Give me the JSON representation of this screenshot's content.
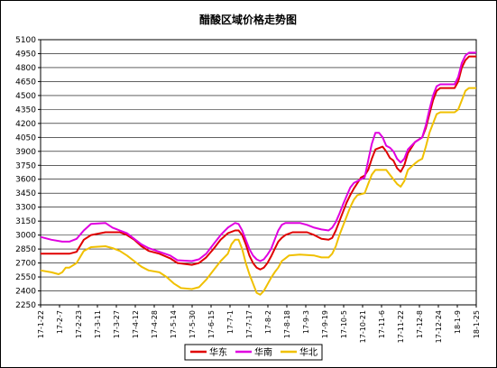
{
  "chart_data": {
    "type": "line",
    "title": "醋酸区域价格走势图",
    "xlabel": "",
    "ylabel": "",
    "ylim": [
      2250,
      5100
    ],
    "yticks": [
      2250,
      2400,
      2550,
      2700,
      2850,
      3000,
      3150,
      3300,
      3450,
      3600,
      3750,
      3900,
      4050,
      4200,
      4350,
      4500,
      4650,
      4800,
      4950,
      5100
    ],
    "x_ticks": [
      "17-1-22",
      "17-2-7",
      "17-2-23",
      "17-3-11",
      "17-3-27",
      "17-4-12",
      "17-4-28",
      "17-5-14",
      "17-5-30",
      "17-6-15",
      "17-7-1",
      "17-7-17",
      "17-8-2",
      "17-8-18",
      "17-9-3",
      "17-9-19",
      "17-10-5",
      "17-10-21",
      "17-11-6",
      "17-11-22",
      "17-12-8",
      "17-12-24",
      "18-1-9",
      "18-1-25"
    ],
    "grid": true,
    "legend_position": "bottom",
    "series": [
      {
        "name": "华东",
        "color": "#e00000",
        "points": [
          [
            0,
            2800
          ],
          [
            8,
            2800
          ],
          [
            10,
            2820
          ],
          [
            12,
            2950
          ],
          [
            14,
            3000
          ],
          [
            18,
            3030
          ],
          [
            22,
            3030
          ],
          [
            24,
            3000
          ],
          [
            26,
            2950
          ],
          [
            28,
            2880
          ],
          [
            30,
            2830
          ],
          [
            33,
            2800
          ],
          [
            36,
            2750
          ],
          [
            38,
            2700
          ],
          [
            42,
            2680
          ],
          [
            44,
            2700
          ],
          [
            46,
            2760
          ],
          [
            48,
            2850
          ],
          [
            50,
            2950
          ],
          [
            52,
            3020
          ],
          [
            54,
            3050
          ],
          [
            55,
            3050
          ],
          [
            56,
            3000
          ],
          [
            57,
            2900
          ],
          [
            58,
            2780
          ],
          [
            59,
            2700
          ],
          [
            60,
            2650
          ],
          [
            61,
            2630
          ],
          [
            62,
            2650
          ],
          [
            63,
            2700
          ],
          [
            64,
            2770
          ],
          [
            65,
            2850
          ],
          [
            66,
            2930
          ],
          [
            67,
            2970
          ],
          [
            68,
            3000
          ],
          [
            70,
            3030
          ],
          [
            74,
            3030
          ],
          [
            76,
            3000
          ],
          [
            78,
            2960
          ],
          [
            80,
            2950
          ],
          [
            81,
            2970
          ],
          [
            82,
            3050
          ],
          [
            83,
            3150
          ],
          [
            84,
            3250
          ],
          [
            85,
            3350
          ],
          [
            86,
            3430
          ],
          [
            87,
            3500
          ],
          [
            88,
            3560
          ],
          [
            89,
            3620
          ],
          [
            90,
            3640
          ],
          [
            91,
            3700
          ],
          [
            92,
            3820
          ],
          [
            93,
            3920
          ],
          [
            95,
            3950
          ],
          [
            96,
            3900
          ],
          [
            97,
            3830
          ],
          [
            98,
            3800
          ],
          [
            99,
            3720
          ],
          [
            100,
            3680
          ],
          [
            101,
            3750
          ],
          [
            102,
            3880
          ],
          [
            104,
            4000
          ],
          [
            106,
            4050
          ],
          [
            107,
            4150
          ],
          [
            108,
            4300
          ],
          [
            109,
            4450
          ],
          [
            110,
            4550
          ],
          [
            111,
            4580
          ],
          [
            115,
            4580
          ],
          [
            116,
            4650
          ],
          [
            117,
            4800
          ],
          [
            118,
            4880
          ],
          [
            119,
            4920
          ],
          [
            121,
            4920
          ]
        ]
      },
      {
        "name": "华南",
        "color": "#e000e0",
        "points": [
          [
            0,
            2980
          ],
          [
            3,
            2950
          ],
          [
            6,
            2930
          ],
          [
            8,
            2930
          ],
          [
            10,
            2960
          ],
          [
            12,
            3050
          ],
          [
            14,
            3120
          ],
          [
            18,
            3130
          ],
          [
            20,
            3080
          ],
          [
            22,
            3050
          ],
          [
            24,
            3020
          ],
          [
            26,
            2960
          ],
          [
            28,
            2900
          ],
          [
            30,
            2860
          ],
          [
            33,
            2820
          ],
          [
            36,
            2780
          ],
          [
            38,
            2730
          ],
          [
            42,
            2720
          ],
          [
            44,
            2740
          ],
          [
            46,
            2800
          ],
          [
            48,
            2900
          ],
          [
            50,
            3000
          ],
          [
            52,
            3080
          ],
          [
            54,
            3130
          ],
          [
            55,
            3120
          ],
          [
            56,
            3050
          ],
          [
            57,
            2950
          ],
          [
            58,
            2850
          ],
          [
            59,
            2780
          ],
          [
            60,
            2740
          ],
          [
            61,
            2720
          ],
          [
            62,
            2740
          ],
          [
            63,
            2790
          ],
          [
            64,
            2850
          ],
          [
            65,
            2950
          ],
          [
            66,
            3050
          ],
          [
            67,
            3110
          ],
          [
            68,
            3130
          ],
          [
            72,
            3130
          ],
          [
            74,
            3110
          ],
          [
            76,
            3080
          ],
          [
            78,
            3060
          ],
          [
            80,
            3050
          ],
          [
            81,
            3080
          ],
          [
            82,
            3140
          ],
          [
            83,
            3230
          ],
          [
            84,
            3330
          ],
          [
            85,
            3420
          ],
          [
            86,
            3510
          ],
          [
            87,
            3560
          ],
          [
            88,
            3580
          ],
          [
            89,
            3600
          ],
          [
            90,
            3620
          ],
          [
            91,
            3800
          ],
          [
            92,
            3980
          ],
          [
            93,
            4100
          ],
          [
            94,
            4100
          ],
          [
            95,
            4050
          ],
          [
            96,
            3960
          ],
          [
            97,
            3940
          ],
          [
            98,
            3900
          ],
          [
            99,
            3820
          ],
          [
            100,
            3780
          ],
          [
            101,
            3820
          ],
          [
            102,
            3920
          ],
          [
            104,
            4000
          ],
          [
            106,
            4050
          ],
          [
            107,
            4180
          ],
          [
            108,
            4350
          ],
          [
            109,
            4500
          ],
          [
            110,
            4600
          ],
          [
            111,
            4620
          ],
          [
            115,
            4620
          ],
          [
            116,
            4700
          ],
          [
            117,
            4850
          ],
          [
            118,
            4930
          ],
          [
            119,
            4960
          ],
          [
            121,
            4960
          ]
        ]
      },
      {
        "name": "华北",
        "color": "#f0c000",
        "points": [
          [
            0,
            2620
          ],
          [
            3,
            2600
          ],
          [
            5,
            2580
          ],
          [
            6,
            2600
          ],
          [
            7,
            2650
          ],
          [
            8,
            2650
          ],
          [
            10,
            2700
          ],
          [
            12,
            2830
          ],
          [
            14,
            2870
          ],
          [
            18,
            2880
          ],
          [
            20,
            2860
          ],
          [
            22,
            2830
          ],
          [
            24,
            2780
          ],
          [
            26,
            2720
          ],
          [
            28,
            2660
          ],
          [
            30,
            2620
          ],
          [
            33,
            2600
          ],
          [
            35,
            2550
          ],
          [
            37,
            2480
          ],
          [
            39,
            2430
          ],
          [
            42,
            2420
          ],
          [
            44,
            2440
          ],
          [
            46,
            2520
          ],
          [
            48,
            2620
          ],
          [
            50,
            2720
          ],
          [
            52,
            2800
          ],
          [
            53,
            2900
          ],
          [
            54,
            2950
          ],
          [
            55,
            2950
          ],
          [
            56,
            2850
          ],
          [
            57,
            2700
          ],
          [
            58,
            2580
          ],
          [
            59,
            2480
          ],
          [
            60,
            2380
          ],
          [
            61,
            2360
          ],
          [
            62,
            2400
          ],
          [
            63,
            2470
          ],
          [
            64,
            2540
          ],
          [
            65,
            2600
          ],
          [
            66,
            2650
          ],
          [
            67,
            2720
          ],
          [
            68,
            2750
          ],
          [
            69,
            2780
          ],
          [
            72,
            2790
          ],
          [
            76,
            2780
          ],
          [
            78,
            2760
          ],
          [
            80,
            2760
          ],
          [
            81,
            2800
          ],
          [
            82,
            2880
          ],
          [
            83,
            3000
          ],
          [
            84,
            3100
          ],
          [
            85,
            3200
          ],
          [
            86,
            3300
          ],
          [
            87,
            3380
          ],
          [
            88,
            3430
          ],
          [
            90,
            3450
          ],
          [
            91,
            3550
          ],
          [
            92,
            3650
          ],
          [
            93,
            3700
          ],
          [
            96,
            3700
          ],
          [
            97,
            3650
          ],
          [
            98,
            3600
          ],
          [
            99,
            3550
          ],
          [
            100,
            3520
          ],
          [
            101,
            3580
          ],
          [
            102,
            3700
          ],
          [
            104,
            3770
          ],
          [
            105,
            3800
          ],
          [
            106,
            3820
          ],
          [
            107,
            3950
          ],
          [
            108,
            4100
          ],
          [
            109,
            4200
          ],
          [
            110,
            4300
          ],
          [
            111,
            4320
          ],
          [
            115,
            4320
          ],
          [
            116,
            4350
          ],
          [
            117,
            4450
          ],
          [
            118,
            4550
          ],
          [
            119,
            4580
          ],
          [
            121,
            4580
          ]
        ]
      }
    ]
  }
}
